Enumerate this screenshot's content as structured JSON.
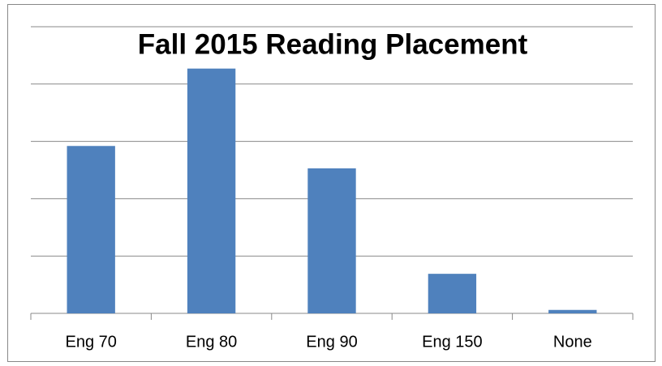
{
  "chart_data": {
    "type": "bar",
    "title": "Fall 2015 Reading Placement",
    "categories": [
      "Eng 70",
      "Eng 80",
      "Eng 90",
      "Eng 150",
      "None"
    ],
    "values": [
      2.92,
      4.27,
      2.53,
      0.69,
      0.06
    ],
    "color": "#4f81bd",
    "ylim": [
      0,
      5
    ],
    "yticks": [
      0,
      1,
      2,
      3,
      4,
      5
    ],
    "grid": true
  }
}
